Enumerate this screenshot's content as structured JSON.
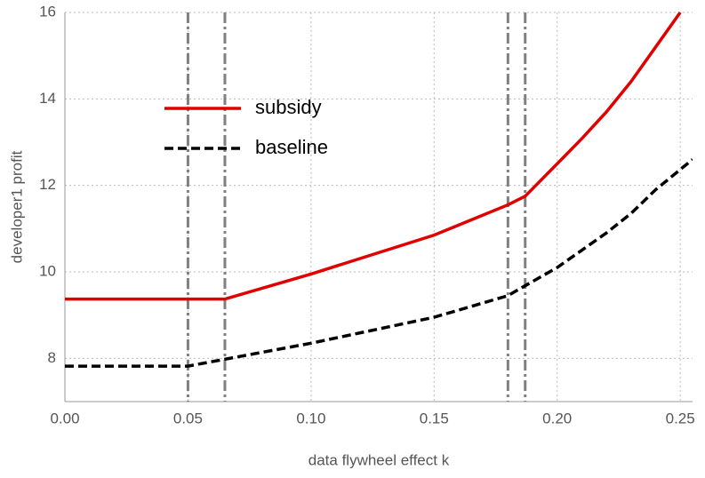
{
  "chart_data": {
    "type": "line",
    "xlabel": "data flywheel effect k",
    "ylabel": "developer1 profit",
    "xlim": [
      0,
      0.255
    ],
    "ylim": [
      7,
      16
    ],
    "xticks": [
      {
        "value": 0,
        "label": "0.00"
      },
      {
        "value": 0.05,
        "label": "0.05"
      },
      {
        "value": 0.1,
        "label": "0.10"
      },
      {
        "value": 0.15,
        "label": "0.15"
      },
      {
        "value": 0.2,
        "label": "0.20"
      },
      {
        "value": 0.25,
        "label": "0.25"
      }
    ],
    "yticks": [
      8,
      10,
      12,
      14,
      16
    ],
    "grid": true,
    "legend": "upper left",
    "vlines": [
      0.05,
      0.065,
      0.18,
      0.187
    ],
    "vline_color": "#808080",
    "series": [
      {
        "name": "subsidy",
        "color": "#e00000",
        "linestyle": "solid",
        "x": [
          0,
          0.065,
          0.1,
          0.15,
          0.18,
          0.187,
          0.2,
          0.21,
          0.22,
          0.23,
          0.24,
          0.25
        ],
        "values": [
          9.37,
          9.37,
          9.95,
          10.85,
          11.55,
          11.75,
          12.5,
          13.08,
          13.7,
          14.4,
          15.2,
          16
        ]
      },
      {
        "name": "baseline",
        "color": "#000000",
        "linestyle": "dashed",
        "x": [
          0,
          0.05,
          0.065,
          0.1,
          0.15,
          0.18,
          0.187,
          0.2,
          0.21,
          0.22,
          0.23,
          0.24,
          0.255
        ],
        "values": [
          7.82,
          7.82,
          7.98,
          8.35,
          8.95,
          9.45,
          9.68,
          10.1,
          10.5,
          10.9,
          11.35,
          11.9,
          12.6
        ]
      }
    ]
  }
}
